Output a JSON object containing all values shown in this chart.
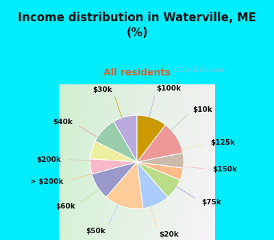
{
  "title": "Income distribution in Waterville, ME\n(%)",
  "subtitle": "All residents",
  "title_color": "#111111",
  "subtitle_color": "#cc6633",
  "bg_cyan": "#00eeff",
  "chart_bg": "#e0f5e0",
  "labels": [
    "$100k",
    "$10k",
    "$125k",
    "$150k",
    "$75k",
    "$20k",
    "$50k",
    "$60k",
    "> $200k",
    "$200k",
    "$40k",
    "$30k"
  ],
  "values": [
    8,
    9,
    6,
    5,
    9,
    13,
    9,
    7,
    4,
    5,
    11,
    10
  ],
  "colors": [
    "#b8aadd",
    "#99ccaa",
    "#eeeea0",
    "#f9b8c8",
    "#9999cc",
    "#ffcc99",
    "#aaccff",
    "#bbdd88",
    "#ffbb88",
    "#ccbbaa",
    "#ee9999",
    "#cc9900"
  ],
  "label_fontsize": 7.5,
  "title_fontsize": 12,
  "subtitle_fontsize": 10
}
